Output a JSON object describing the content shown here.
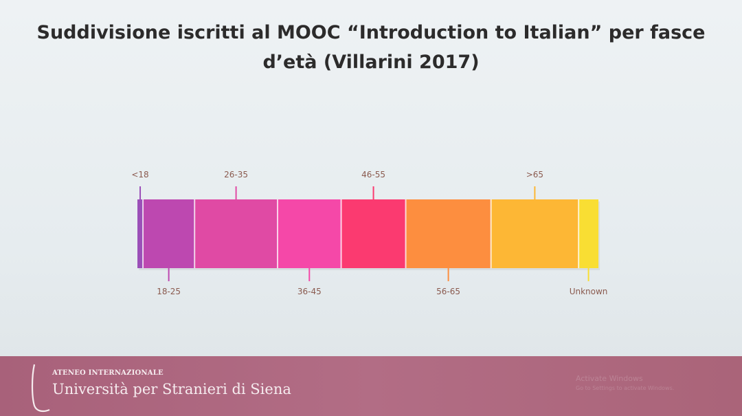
{
  "slide": {
    "title_line1": "Suddivisione iscritti al MOOC “Introduction to Italian” per fasce",
    "title_line2": "d’età (Villarini 2017)"
  },
  "chart_data": {
    "type": "bar",
    "orientation": "horizontal-stacked-100",
    "title": "Suddivisione iscritti al MOOC “Introduction to Italian” per fasce d’età (Villarini 2017)",
    "categories": [
      "<18",
      "18-25",
      "26-35",
      "36-45",
      "46-55",
      "56-65",
      ">65",
      "Unknown"
    ],
    "values": [
      1.2,
      11.2,
      18.0,
      13.8,
      14.0,
      18.5,
      19.0,
      4.3
    ],
    "unit": "% of enrolled learners (estimated from segment widths)",
    "label_positions": [
      "top",
      "bottom",
      "top",
      "bottom",
      "top",
      "bottom",
      "top",
      "bottom"
    ],
    "colors": [
      "#9b4fb8",
      "#bd48b0",
      "#e04aa4",
      "#f548a8",
      "#fb3a70",
      "#fd8e3f",
      "#fdb735",
      "#f9de33"
    ],
    "grid": false,
    "legend": "none"
  },
  "footer": {
    "org_top": "ATENEO INTERNAZIONALE",
    "org_name": "Università per Stranieri di Siena",
    "watermark_line1": "Activate Windows",
    "watermark_line2": "Go to Settings to activate Windows."
  }
}
